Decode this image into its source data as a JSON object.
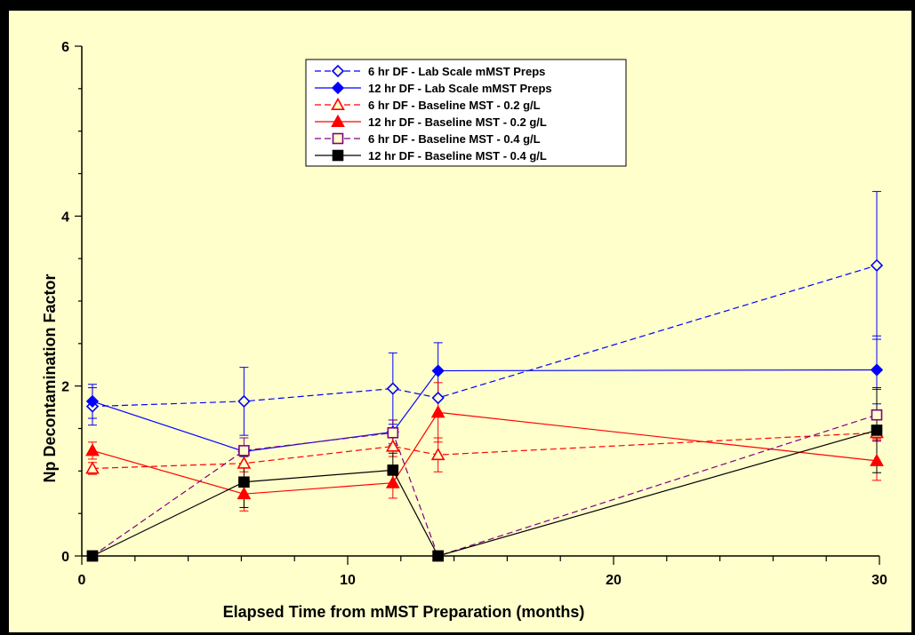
{
  "chart_data": {
    "type": "line",
    "title": "",
    "xlabel": "Elapsed Time from mMST Preparation (months)",
    "ylabel": "Np Decontamination Factor",
    "xlim": [
      0,
      30
    ],
    "ylim": [
      0,
      6
    ],
    "x_ticks": [
      0,
      10,
      20,
      30
    ],
    "y_ticks": [
      0,
      2,
      4,
      6
    ],
    "grid": false,
    "legend_position": "top-center",
    "series": [
      {
        "name": "6 hr DF - Lab Scale mMST Preps",
        "color": "#0000ff",
        "dashed": true,
        "marker": "diamond",
        "filled": false,
        "x": [
          0.4,
          6.1,
          11.7,
          13.4,
          29.9
        ],
        "y": [
          1.76,
          1.82,
          1.97,
          1.86,
          3.42
        ],
        "err": [
          0.22,
          0.4,
          0.42,
          0,
          0.87
        ]
      },
      {
        "name": "12 hr DF - Lab Scale mMST Preps",
        "color": "#0000ff",
        "dashed": false,
        "marker": "diamond",
        "filled": true,
        "x": [
          0.4,
          6.1,
          11.7,
          13.4,
          29.9
        ],
        "y": [
          1.82,
          1.23,
          1.46,
          2.18,
          2.19
        ],
        "err": [
          0.2,
          0,
          0.14,
          0.33,
          0.4
        ]
      },
      {
        "name": "6 hr DF - Baseline MST - 0.2 g/L",
        "color": "#ff0000",
        "dashed": true,
        "marker": "triangle",
        "filled": false,
        "x": [
          0.4,
          6.1,
          11.7,
          13.4,
          29.9
        ],
        "y": [
          1.03,
          1.09,
          1.29,
          1.19,
          1.45
        ],
        "err": [
          0.07,
          0.1,
          0.12,
          0.2,
          0.07
        ]
      },
      {
        "name": "12 hr DF - Baseline MST - 0.2 g/L",
        "color": "#ff0000",
        "dashed": false,
        "marker": "triangle",
        "filled": true,
        "x": [
          0.4,
          6.1,
          11.7,
          13.4,
          29.9
        ],
        "y": [
          1.24,
          0.73,
          0.86,
          1.69,
          1.12
        ],
        "err": [
          0.1,
          0.2,
          0.18,
          0.35,
          0.23
        ]
      },
      {
        "name": "6 hr DF - Baseline MST - 0.4 g/L",
        "color": "#800080",
        "dashed": true,
        "marker": "square",
        "filled": false,
        "x": [
          0.4,
          6.1,
          11.7,
          13.4,
          29.9
        ],
        "y": [
          0,
          1.24,
          1.45,
          0,
          1.66
        ],
        "err": [
          0,
          0.15,
          0.15,
          0,
          0.3
        ]
      },
      {
        "name": "12 hr DF - Baseline MST - 0.4 g/L",
        "color": "#000000",
        "dashed": false,
        "marker": "square",
        "filled": true,
        "x": [
          0.4,
          6.1,
          11.7,
          13.4,
          29.9
        ],
        "y": [
          0,
          0.87,
          1.01,
          0,
          1.48
        ],
        "err": [
          0,
          0.3,
          0.2,
          0,
          0.5
        ]
      }
    ]
  }
}
